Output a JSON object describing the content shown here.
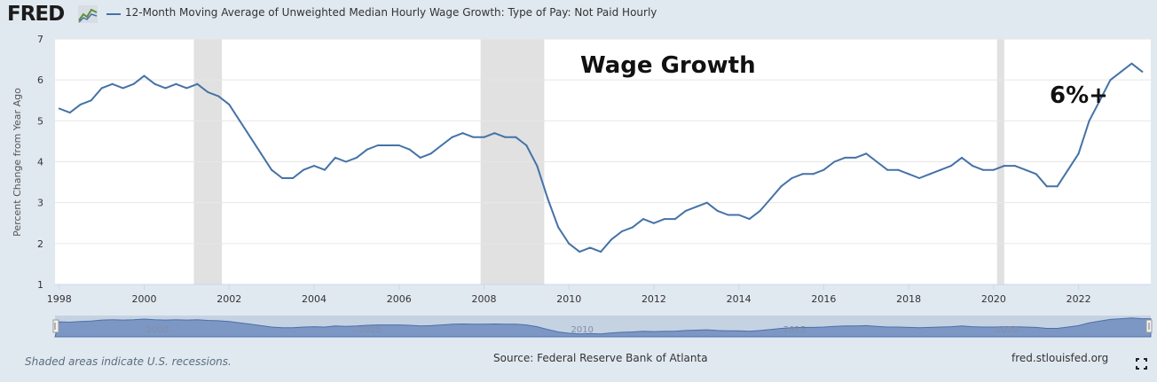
{
  "header": {
    "logo_text": "FRED",
    "legend_label": "12-Month Moving Average of Unweighted Median Hourly Wage Growth: Type of Pay: Not Paid Hourly",
    "series_color": "#4572a7"
  },
  "annotations": {
    "title": "Wage Growth",
    "callout": "6%+"
  },
  "footer": {
    "note": "Shaded areas indicate U.S. recessions.",
    "source": "Source: Federal Reserve Bank of Atlanta",
    "url": "fred.stlouisfed.org"
  },
  "navigator": {
    "labels": [
      "2000",
      "2005",
      "2010",
      "2015",
      "2020"
    ]
  },
  "chart_data": {
    "type": "line",
    "ylabel": "Percent Change from Year Ago",
    "xlabel": "",
    "xlim": [
      1997.9,
      2023.7
    ],
    "ylim": [
      1,
      7
    ],
    "yticks": [
      1,
      2,
      3,
      4,
      5,
      6,
      7
    ],
    "xticks": [
      1998,
      2000,
      2002,
      2004,
      2006,
      2008,
      2010,
      2012,
      2014,
      2016,
      2018,
      2020,
      2022
    ],
    "grid": true,
    "recessions": [
      [
        2001.17,
        2001.83
      ],
      [
        2007.92,
        2009.42
      ],
      [
        2020.08,
        2020.25
      ]
    ],
    "series": [
      {
        "name": "12-Month Moving Average of Unweighted Median Hourly Wage Growth: Type of Pay: Not Paid Hourly",
        "x": [
          1998.0,
          1998.25,
          1998.5,
          1998.75,
          1999.0,
          1999.25,
          1999.5,
          1999.75,
          2000.0,
          2000.25,
          2000.5,
          2000.75,
          2001.0,
          2001.25,
          2001.5,
          2001.75,
          2002.0,
          2002.25,
          2002.5,
          2002.75,
          2003.0,
          2003.25,
          2003.5,
          2003.75,
          2004.0,
          2004.25,
          2004.5,
          2004.75,
          2005.0,
          2005.25,
          2005.5,
          2005.75,
          2006.0,
          2006.25,
          2006.5,
          2006.75,
          2007.0,
          2007.25,
          2007.5,
          2007.75,
          2008.0,
          2008.25,
          2008.5,
          2008.75,
          2009.0,
          2009.25,
          2009.5,
          2009.75,
          2010.0,
          2010.25,
          2010.5,
          2010.75,
          2011.0,
          2011.25,
          2011.5,
          2011.75,
          2012.0,
          2012.25,
          2012.5,
          2012.75,
          2013.0,
          2013.25,
          2013.5,
          2013.75,
          2014.0,
          2014.25,
          2014.5,
          2014.75,
          2015.0,
          2015.25,
          2015.5,
          2015.75,
          2016.0,
          2016.25,
          2016.5,
          2016.75,
          2017.0,
          2017.25,
          2017.5,
          2017.75,
          2018.0,
          2018.25,
          2018.5,
          2018.75,
          2019.0,
          2019.25,
          2019.5,
          2019.75,
          2020.0,
          2020.25,
          2020.5,
          2020.75,
          2021.0,
          2021.25,
          2021.5,
          2021.75,
          2022.0,
          2022.25,
          2022.5,
          2022.75,
          2023.0,
          2023.25,
          2023.5
        ],
        "values": [
          5.3,
          5.2,
          5.4,
          5.5,
          5.8,
          5.9,
          5.8,
          5.9,
          6.1,
          5.9,
          5.8,
          5.9,
          5.8,
          5.9,
          5.7,
          5.6,
          5.4,
          5.0,
          4.6,
          4.2,
          3.8,
          3.6,
          3.6,
          3.8,
          3.9,
          3.8,
          4.1,
          4.0,
          4.1,
          4.3,
          4.4,
          4.4,
          4.4,
          4.3,
          4.1,
          4.2,
          4.4,
          4.6,
          4.7,
          4.6,
          4.6,
          4.7,
          4.6,
          4.6,
          4.4,
          3.9,
          3.1,
          2.4,
          2.0,
          1.8,
          1.9,
          1.8,
          2.1,
          2.3,
          2.4,
          2.6,
          2.5,
          2.6,
          2.6,
          2.8,
          2.9,
          3.0,
          2.8,
          2.7,
          2.7,
          2.6,
          2.8,
          3.1,
          3.4,
          3.6,
          3.7,
          3.7,
          3.8,
          4.0,
          4.1,
          4.1,
          4.2,
          4.0,
          3.8,
          3.8,
          3.7,
          3.6,
          3.7,
          3.8,
          3.9,
          4.1,
          3.9,
          3.8,
          3.8,
          3.9,
          3.9,
          3.8,
          3.7,
          3.4,
          3.4,
          3.8,
          4.2,
          5.0,
          5.5,
          6.0,
          6.2,
          6.4,
          6.2
        ]
      }
    ]
  }
}
